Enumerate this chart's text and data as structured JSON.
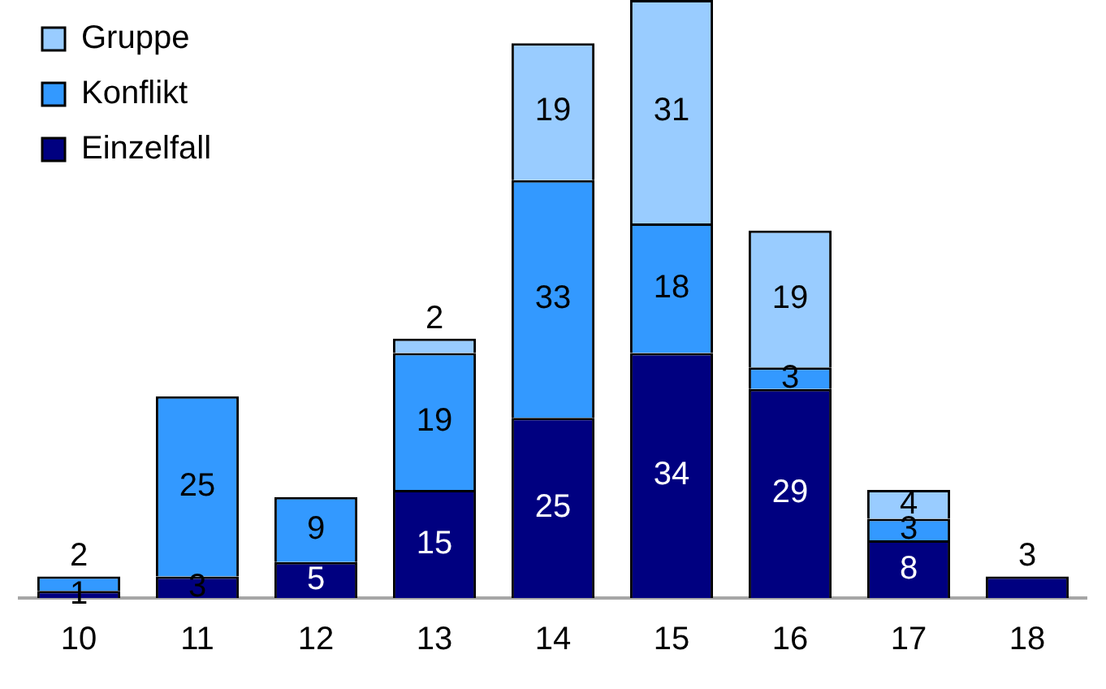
{
  "chart_data": {
    "type": "bar",
    "stacked": true,
    "categories": [
      "10",
      "11",
      "12",
      "13",
      "14",
      "15",
      "16",
      "17",
      "18"
    ],
    "series": [
      {
        "name": "Einzelfall",
        "color": "#000080",
        "values": [
          1,
          3,
          5,
          15,
          25,
          34,
          29,
          8,
          3
        ],
        "value_labels": [
          "1",
          "3",
          "5",
          "15",
          "25",
          "34",
          "29",
          "8",
          "3"
        ]
      },
      {
        "name": "Konflikt",
        "color": "#3399ff",
        "values": [
          2,
          25,
          9,
          19,
          33,
          18,
          3,
          3,
          0
        ],
        "value_labels": [
          "2",
          "25",
          "9",
          "19",
          "33",
          "18",
          "3",
          "3",
          null
        ]
      },
      {
        "name": "Gruppe",
        "color": "#99ccff",
        "values": [
          0,
          0,
          0,
          2,
          19,
          31,
          19,
          4,
          0
        ],
        "value_labels": [
          null,
          null,
          null,
          "2",
          "19",
          "31",
          "19",
          "4",
          null
        ]
      }
    ],
    "legend": "top left",
    "grid": false
  }
}
